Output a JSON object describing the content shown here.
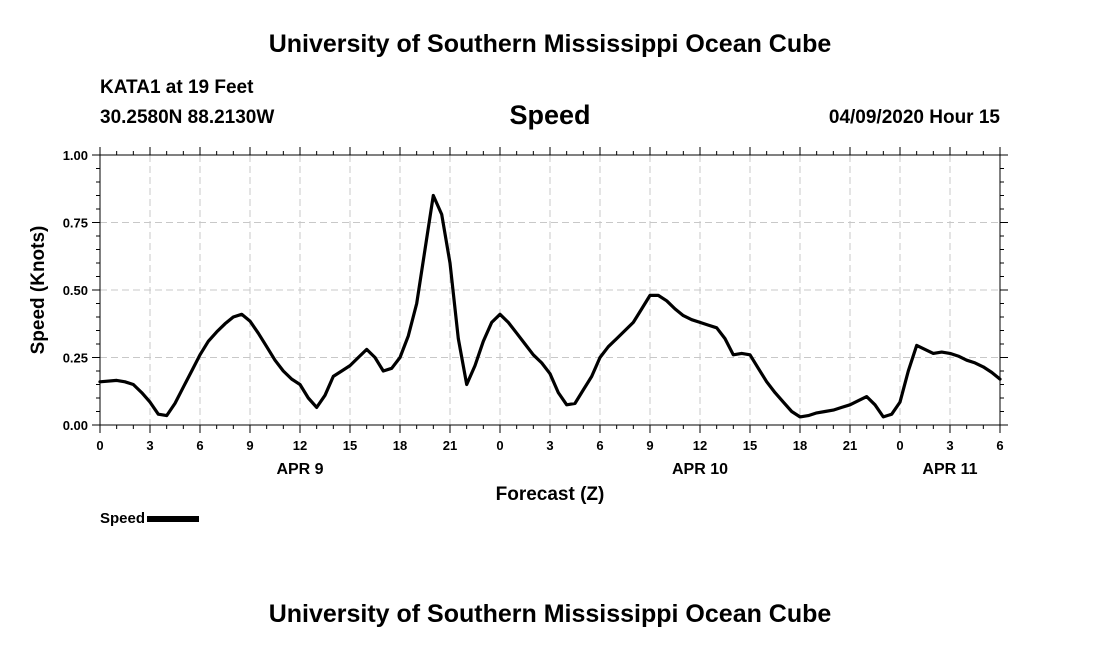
{
  "header": {
    "title": "University of Southern Mississippi Ocean Cube",
    "station": "KATA1 at 19 Feet",
    "coordinates": "30.2580N 88.2130W",
    "variable": "Speed",
    "datetime": "04/09/2020 Hour 15"
  },
  "footer": {
    "title": "University of Southern Mississippi Ocean Cube"
  },
  "legend": {
    "label": "Speed"
  },
  "chart_data": {
    "type": "line",
    "title": "Speed",
    "xlabel": "Forecast (Z)",
    "ylabel": "Speed (Knots)",
    "ylim": [
      0,
      1
    ],
    "yticks": [
      "0.00",
      "0.25",
      "0.50",
      "0.75",
      "1.00"
    ],
    "xlim_hours": [
      0,
      54
    ],
    "x_tick_labels": [
      "0",
      "3",
      "6",
      "9",
      "12",
      "15",
      "18",
      "21",
      "0",
      "3",
      "6",
      "9",
      "12",
      "15",
      "18",
      "21",
      "0",
      "3",
      "6"
    ],
    "x_tick_hours": [
      0,
      3,
      6,
      9,
      12,
      15,
      18,
      21,
      24,
      27,
      30,
      33,
      36,
      39,
      42,
      45,
      48,
      51,
      54
    ],
    "date_labels": [
      {
        "label": "APR 9",
        "hour": 12
      },
      {
        "label": "APR 10",
        "hour": 36
      },
      {
        "label": "APR 11",
        "hour": 51
      }
    ],
    "grid": true,
    "line_color": "#000000",
    "series": [
      {
        "name": "Speed",
        "x": [
          0,
          1,
          1.5,
          2,
          2.5,
          3,
          3.5,
          4,
          4.5,
          5,
          5.5,
          6,
          6.5,
          7,
          7.5,
          8,
          8.5,
          9,
          9.5,
          10,
          10.5,
          11,
          11.5,
          12,
          12.5,
          13,
          13.5,
          14,
          14.5,
          15,
          15.5,
          16,
          16.5,
          17,
          17.5,
          18,
          18.5,
          19,
          19.5,
          20,
          20.5,
          21,
          21.5,
          22,
          22.5,
          23,
          23.5,
          24,
          24.5,
          25,
          25.5,
          26,
          26.5,
          27,
          27.5,
          28,
          28.5,
          29,
          29.5,
          30,
          30.5,
          31,
          31.5,
          32,
          32.5,
          33,
          33.5,
          34,
          34.5,
          35,
          35.5,
          36,
          36.5,
          37,
          37.5,
          38,
          38.5,
          39,
          39.5,
          40,
          40.5,
          41,
          41.5,
          42,
          42.5,
          43,
          43.5,
          44,
          44.5,
          45,
          45.5,
          46,
          46.5,
          47,
          47.5,
          48,
          48.5,
          49,
          49.5,
          50,
          50.5,
          51,
          51.5,
          52,
          52.5,
          53,
          53.5,
          54
        ],
        "values": [
          0.16,
          0.165,
          0.16,
          0.15,
          0.12,
          0.085,
          0.04,
          0.035,
          0.08,
          0.14,
          0.2,
          0.26,
          0.31,
          0.345,
          0.375,
          0.4,
          0.41,
          0.385,
          0.34,
          0.29,
          0.24,
          0.2,
          0.17,
          0.15,
          0.1,
          0.065,
          0.11,
          0.18,
          0.2,
          0.22,
          0.25,
          0.28,
          0.25,
          0.2,
          0.21,
          0.25,
          0.33,
          0.45,
          0.65,
          0.85,
          0.78,
          0.6,
          0.32,
          0.15,
          0.22,
          0.31,
          0.38,
          0.41,
          0.38,
          0.34,
          0.3,
          0.26,
          0.23,
          0.19,
          0.12,
          0.075,
          0.08,
          0.13,
          0.18,
          0.25,
          0.29,
          0.32,
          0.35,
          0.38,
          0.43,
          0.48,
          0.48,
          0.46,
          0.43,
          0.405,
          0.39,
          0.38,
          0.37,
          0.36,
          0.32,
          0.26,
          0.265,
          0.26,
          0.21,
          0.16,
          0.12,
          0.085,
          0.05,
          0.03,
          0.035,
          0.045,
          0.05,
          0.055,
          0.065,
          0.075,
          0.09,
          0.105,
          0.075,
          0.03,
          0.04,
          0.085,
          0.2,
          0.295,
          0.28,
          0.265,
          0.27,
          0.265,
          0.255,
          0.24,
          0.23,
          0.215,
          0.195,
          0.17
        ]
      }
    ]
  }
}
